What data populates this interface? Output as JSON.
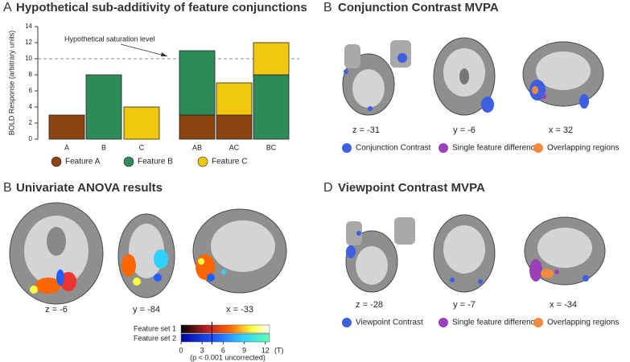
{
  "chart_data": {
    "type": "bar",
    "stacked": true,
    "panel_label": "A",
    "title": "Hypothetical sub-additivity of feature conjunctions",
    "ylabel": "BOLD Response (arbitrary units)",
    "categories": [
      "A",
      "B",
      "C",
      "AB",
      "AC",
      "BC"
    ],
    "series": [
      {
        "name": "Feature A",
        "color": "#8b4513",
        "values": [
          3,
          null,
          null,
          3,
          3,
          null
        ]
      },
      {
        "name": "Feature B",
        "color": "#2e8b57",
        "values": [
          null,
          8,
          null,
          8,
          null,
          8
        ]
      },
      {
        "name": "Feature C",
        "color": "#f2c80f",
        "values": [
          null,
          null,
          4,
          null,
          4,
          4
        ]
      }
    ],
    "ylim": [
      0,
      14
    ],
    "yticks": [
      0,
      2,
      4,
      6,
      8,
      10,
      12,
      14
    ],
    "reference_line": {
      "value": 10,
      "label": "Hypothetical saturation level"
    },
    "legend_position": "bottom"
  },
  "panel_b": {
    "panel_label": "B",
    "title": "Conjunction Contrast MVPA",
    "coordinates": [
      "z = -31",
      "y = -6",
      "x = 32"
    ],
    "legend": [
      {
        "label": "Conjunction Contrast",
        "color": "#3d5fe0"
      },
      {
        "label": "Single feature difference",
        "color": "#9a40b8"
      },
      {
        "label": "Overlapping regions",
        "color": "#f08a3c"
      }
    ]
  },
  "panel_c": {
    "panel_label": "B",
    "title": "Univariate ANOVA results",
    "coordinates": [
      "z = -6",
      "y = -84",
      "x = -33"
    ],
    "colorbar": {
      "series_labels": [
        "Feature set 1",
        "Feature set 2"
      ],
      "lim": [
        0,
        12.6
      ],
      "ticks": [
        0,
        3,
        6,
        9,
        12
      ],
      "threshold": 4.4,
      "unit": "(T)",
      "note": "(p < 0.001 uncorrected)"
    }
  },
  "panel_d": {
    "panel_label": "D",
    "title": "Viewpoint Contrast MVPA",
    "coordinates": [
      "z = -28",
      "y = -7",
      "x = -34"
    ],
    "legend": [
      {
        "label": "Viewpoint Contrast",
        "color": "#3d5fe0"
      },
      {
        "label": "Single feature difference",
        "color": "#9a40b8"
      },
      {
        "label": "Overlapping regions",
        "color": "#f08a3c"
      }
    ]
  }
}
